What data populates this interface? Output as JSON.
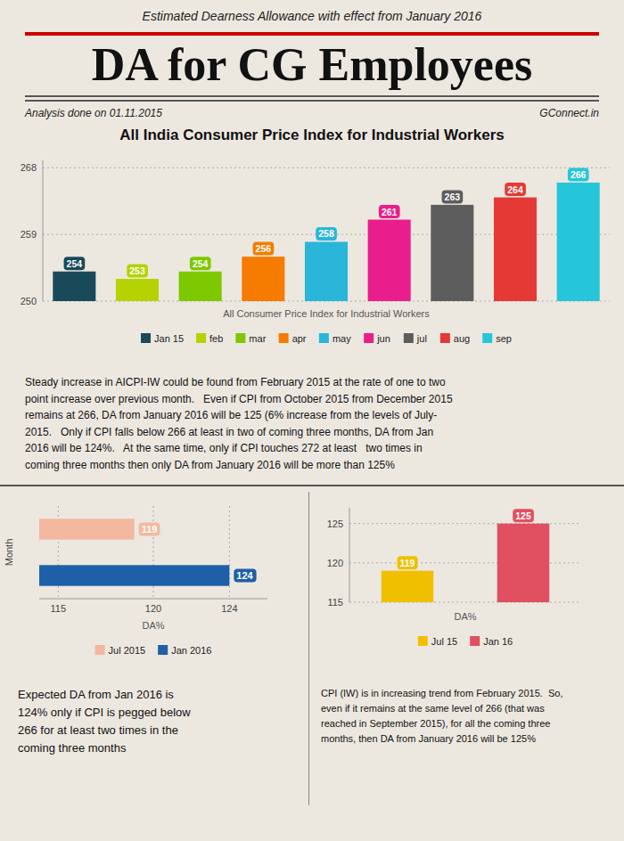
{
  "title": "DA for CG Employees",
  "subtitle": "Estimated Dearness Allowance with effect from January 2016",
  "annotations": [
    "Analysis done on 01.11.2015",
    "GConnect.in",
    "Steady increase in AICPI-IW could be found from February 2015 at the rate of one to two\npoint increase over previous month.   Even if CPI from October 2015 from December 2015\nremains at 266, DA from January 2016 will be 125 (6% increase from the levels of July-\n2015.   Only if CPI falls below 266 at least in two of coming three months, DA from Jan\n2016 will be 124%.   At the same time, only if CPI touches 272 at least   two times in\ncoming three months then only DA from January 2016 will be more than 125%",
    "Expected DA from Jan 2016 is\n124% only if CPI is pegged below\n266 for at least two times in the\ncoming three months",
    "CPI (IW) is in increasing trend from February 2015.  So,\neven if it remains at the same level of 266 (that was\nreached in September 2015), for all the coming three\nmonths, then DA from January 2016 will be 125%"
  ],
  "chart_data": [
    {
      "type": "bar",
      "title": "All India Consumer Price Index for Industrial Workers",
      "xlabel": "All Consumer Price Index for Industrial Workers",
      "categories": [
        "Jan 15",
        "feb",
        "mar",
        "apr",
        "may",
        "jun",
        "jul",
        "aug",
        "sep"
      ],
      "values": [
        254,
        253,
        254,
        256,
        258,
        261,
        263,
        264,
        266
      ],
      "colors": [
        "#1a4a5a",
        "#b5d300",
        "#7dc800",
        "#f57c00",
        "#29b6d8",
        "#e91e8c",
        "#5d5d5d",
        "#e53935",
        "#26c6da"
      ],
      "ylim": [
        250,
        269
      ],
      "yticks": [
        250,
        259,
        268
      ],
      "grid": true,
      "data_labels": true,
      "legend": "bottom",
      "tick_labels": "y"
    },
    {
      "type": "bar",
      "orientation": "horizontal",
      "xlabel": "DA%",
      "ylabel": "Month",
      "categories": [
        "Jul 2015",
        "Jan 2016"
      ],
      "values": [
        119,
        124
      ],
      "colors": [
        "#f4b8a0",
        "#1e5fa8"
      ],
      "xlim": [
        114,
        126
      ],
      "xticks": [
        115,
        120,
        124
      ],
      "grid": true,
      "data_labels": true,
      "legend": "bottom",
      "tick_labels": "x"
    },
    {
      "type": "bar",
      "xlabel": "DA%",
      "categories": [
        "Jul 15",
        "Jan 16"
      ],
      "values": [
        119,
        125
      ],
      "colors": [
        "#f0c000",
        "#e05060"
      ],
      "ylim": [
        115,
        127
      ],
      "yticks": [
        115,
        120,
        125
      ],
      "grid": true,
      "data_labels": true,
      "legend": "bottom",
      "tick_labels": "y"
    }
  ]
}
